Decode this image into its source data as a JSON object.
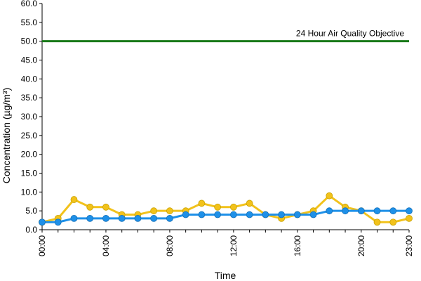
{
  "chart_data": {
    "type": "line",
    "xlabel": "Time",
    "ylabel": "Concentration (µg/m³)",
    "ylim": [
      0,
      60
    ],
    "y_ticks": [
      "0.0",
      "5.0",
      "10.0",
      "15.0",
      "20.0",
      "25.0",
      "30.0",
      "35.0",
      "40.0",
      "45.0",
      "50.0",
      "55.0",
      "60.0"
    ],
    "x_ticks": [
      "00:00",
      "04:00",
      "08:00",
      "12:00",
      "16:00",
      "20:00",
      "23:00"
    ],
    "x_tick_hours": [
      0,
      4,
      8,
      12,
      16,
      20,
      23
    ],
    "x": [
      0,
      1,
      2,
      3,
      4,
      5,
      6,
      7,
      8,
      9,
      10,
      11,
      12,
      13,
      14,
      15,
      16,
      17,
      18,
      19,
      20,
      21,
      22,
      23
    ],
    "grid": false,
    "reference_line": {
      "value": 50,
      "label": "24 Hour Air Quality Objective",
      "color": "#1a7a1a"
    },
    "series": [
      {
        "color": "#f2c21b",
        "values": [
          2,
          3,
          8,
          6,
          6,
          4,
          4,
          5,
          5,
          5,
          7,
          6,
          6,
          7,
          4,
          3,
          4,
          5,
          9,
          6,
          5,
          2,
          2,
          3
        ]
      },
      {
        "color": "#1e90e8",
        "values": [
          2,
          2,
          3,
          3,
          3,
          3,
          3,
          3,
          3,
          4,
          4,
          4,
          4,
          4,
          4,
          4,
          4,
          4,
          5,
          5,
          5,
          5,
          5,
          5
        ]
      }
    ]
  }
}
